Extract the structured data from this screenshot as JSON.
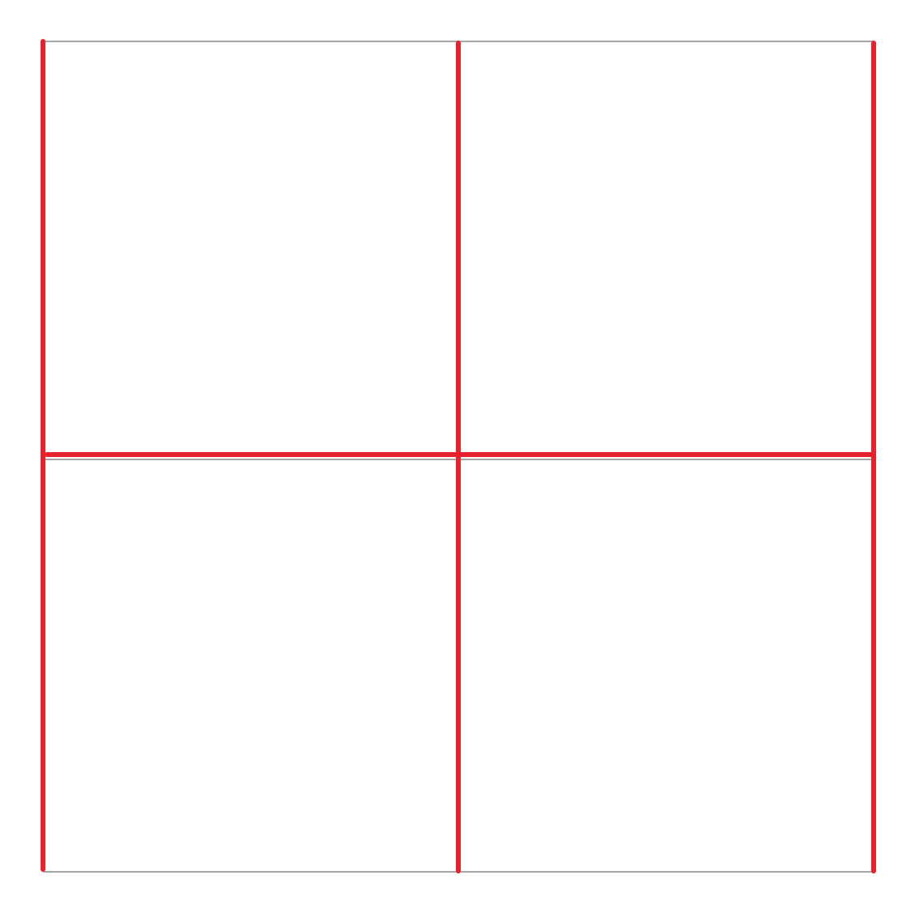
{
  "colors": {
    "background": "#ffffff",
    "gray_line": "#a6a6a6",
    "red_line": "#e8212a"
  },
  "diagram": {
    "type": "two-by-two grid",
    "rows": 2,
    "columns": 2,
    "red_vertical_lines": 3,
    "red_horizontal_lines": 1,
    "gray_horizontal_lines": 3
  }
}
